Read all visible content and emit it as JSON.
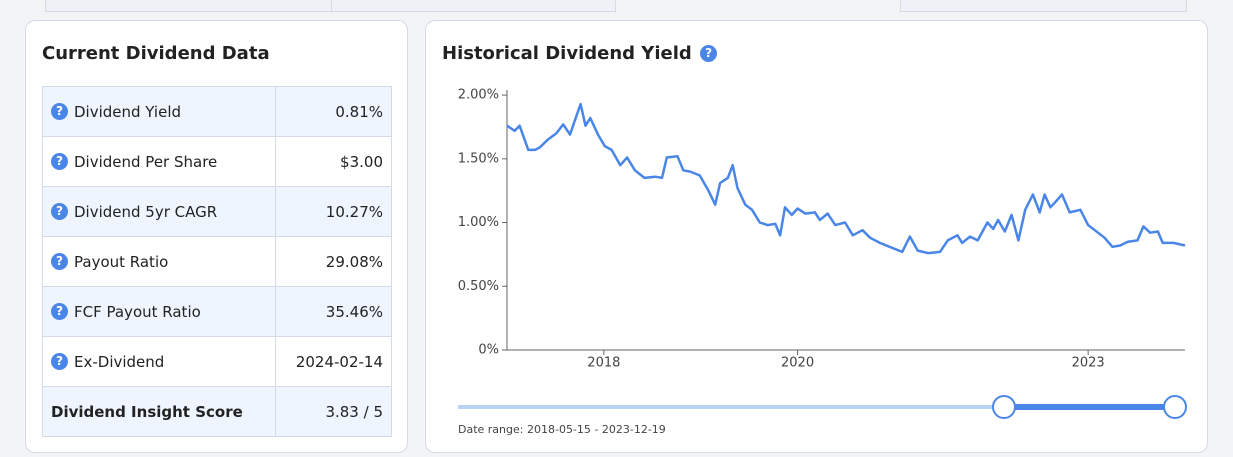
{
  "dividend_data": {
    "title": "Current Dividend Data",
    "rows": [
      [
        "Dividend Yield",
        "0.81%"
      ],
      [
        "Dividend Per Share",
        "$3.00"
      ],
      [
        "Dividend 5yr CAGR",
        "10.27%"
      ],
      [
        "Payout Ratio",
        "29.08%"
      ],
      [
        "FCF Payout Ratio",
        "35.46%"
      ],
      [
        "Ex-Dividend",
        "2024-02-14"
      ],
      [
        "Dividend Insight Score",
        "3.83 / 5"
      ]
    ]
  },
  "chart_data": {
    "type": "line",
    "title": "Historical Dividend Yield",
    "color": "#4a86e8",
    "x": [
      2017.0,
      2017.08,
      2017.13,
      2017.22,
      2017.29,
      2017.34,
      2017.42,
      2017.51,
      2017.58,
      2017.65,
      2017.7,
      2017.76,
      2017.81,
      2017.86,
      2017.94,
      2018.01,
      2018.08,
      2018.17,
      2018.24,
      2018.32,
      2018.42,
      2018.53,
      2018.6,
      2018.65,
      2018.76,
      2018.82,
      2018.89,
      2018.99,
      2019.08,
      2019.15,
      2019.2,
      2019.28,
      2019.33,
      2019.38,
      2019.46,
      2019.53,
      2019.61,
      2019.69,
      2019.77,
      2019.82,
      2019.87,
      2019.94,
      2020.0,
      2020.08,
      2020.18,
      2020.23,
      2020.31,
      2020.39,
      2020.49,
      2020.57,
      2020.67,
      2020.75,
      2020.85,
      2020.95,
      2021.08,
      2021.16,
      2021.24,
      2021.35,
      2021.47,
      2021.55,
      2021.65,
      2021.7,
      2021.78,
      2021.86,
      2021.96,
      2022.02,
      2022.07,
      2022.14,
      2022.21,
      2022.28,
      2022.35,
      2022.43,
      2022.5,
      2022.55,
      2022.61,
      2022.66,
      2022.73,
      2022.81,
      2022.92,
      2023.0,
      2023.07,
      2023.17,
      2023.25,
      2023.33,
      2023.41,
      2023.51,
      2023.57,
      2023.64,
      2023.72,
      2023.77,
      2023.88,
      2024.0
    ],
    "values": [
      1.76,
      1.72,
      1.76,
      1.57,
      1.57,
      1.59,
      1.65,
      1.7,
      1.77,
      1.69,
      1.8,
      1.93,
      1.76,
      1.82,
      1.69,
      1.6,
      1.57,
      1.45,
      1.51,
      1.41,
      1.35,
      1.36,
      1.35,
      1.51,
      1.52,
      1.41,
      1.4,
      1.37,
      1.25,
      1.14,
      1.31,
      1.35,
      1.45,
      1.27,
      1.14,
      1.1,
      1.0,
      0.98,
      0.99,
      0.9,
      1.12,
      1.06,
      1.11,
      1.07,
      1.08,
      1.02,
      1.07,
      0.98,
      1.0,
      0.9,
      0.94,
      0.88,
      0.84,
      0.81,
      0.77,
      0.89,
      0.78,
      0.76,
      0.77,
      0.86,
      0.9,
      0.84,
      0.89,
      0.86,
      1.0,
      0.95,
      1.02,
      0.93,
      1.06,
      0.86,
      1.1,
      1.22,
      1.08,
      1.22,
      1.12,
      1.16,
      1.22,
      1.08,
      1.1,
      0.98,
      0.94,
      0.88,
      0.81,
      0.82,
      0.85,
      0.86,
      0.97,
      0.92,
      0.93,
      0.84,
      0.84,
      0.82
    ],
    "xlim": [
      2017,
      2024
    ],
    "xticks": [
      2018,
      2020,
      2023
    ],
    "ylim": [
      0,
      2.04
    ],
    "yticks": [
      {
        "value": 0,
        "label": "0%"
      },
      {
        "value": 0.5,
        "label": "0.50%"
      },
      {
        "value": 1,
        "label": "1.00%"
      },
      {
        "value": 1.5,
        "label": "1.50%"
      },
      {
        "value": 2,
        "label": "2.00%"
      }
    ],
    "date_range_label": "Date range: 2018-05-15 - 2023-12-19"
  }
}
